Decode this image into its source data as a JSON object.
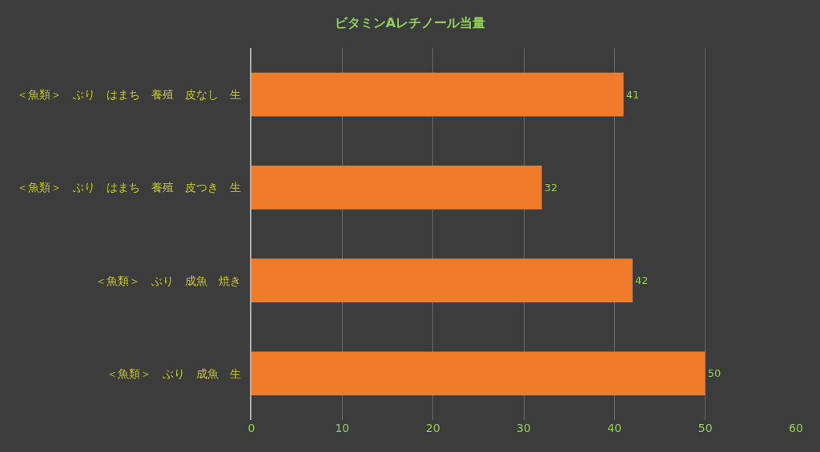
{
  "chart_data": {
    "type": "bar",
    "orientation": "horizontal",
    "title": "ビタミンAレチノール当量",
    "categories": [
      "＜魚類＞　ぶり　はまち　養殖　皮なし　生",
      "＜魚類＞　ぶり　はまち　養殖　皮つき　生",
      "＜魚類＞　ぶり　成魚　焼き",
      "＜魚類＞　ぶり　成魚　生"
    ],
    "values": [
      41,
      32,
      42,
      50
    ],
    "color": "#f07b2a",
    "xlim": [
      0,
      60
    ],
    "xticks": [
      0,
      10,
      20,
      30,
      40,
      50,
      60
    ],
    "grid": "x",
    "data_labels": true
  }
}
